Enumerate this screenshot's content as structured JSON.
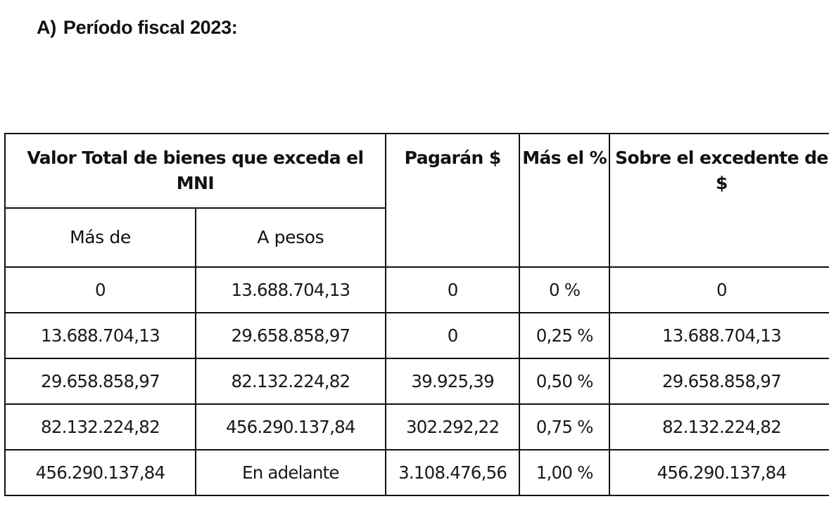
{
  "document": {
    "section_label": "A)",
    "section_title": "Período fiscal 2023:"
  },
  "table": {
    "headers": {
      "group_header": "Valor Total de bienes que exceda el MNI",
      "sub_headers": [
        "Más de",
        "A pesos"
      ],
      "pagaran": "Pagarán $",
      "mas_el_pct": "Más el %",
      "sobre_excedente": "Sobre el excedente de $"
    },
    "rows": [
      {
        "mas_de": "0",
        "a_pesos": "13.688.704,13",
        "pagaran": "0",
        "mas_el_pct": "0 %",
        "sobre_excedente": "0"
      },
      {
        "mas_de": "13.688.704,13",
        "a_pesos": "29.658.858,97",
        "pagaran": "0",
        "mas_el_pct": "0,25 %",
        "sobre_excedente": "13.688.704,13"
      },
      {
        "mas_de": "29.658.858,97",
        "a_pesos": "82.132.224,82",
        "pagaran": "39.925,39",
        "mas_el_pct": "0,50 %",
        "sobre_excedente": "29.658.858,97"
      },
      {
        "mas_de": "82.132.224,82",
        "a_pesos": "456.290.137,84",
        "pagaran": "302.292,22",
        "mas_el_pct": "0,75 %",
        "sobre_excedente": "82.132.224,82"
      },
      {
        "mas_de": "456.290.137,84",
        "a_pesos": "En adelante",
        "pagaran": "3.108.476,56",
        "mas_el_pct": "1,00 %",
        "sobre_excedente": "456.290.137,84"
      }
    ]
  }
}
